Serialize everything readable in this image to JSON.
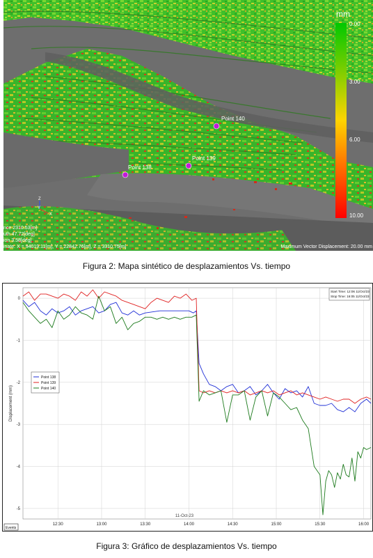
{
  "figure1": {
    "caption": "Figura 2: Mapa sintético de desplazamientos Vs. tiempo",
    "colorbar": {
      "unit": "mm",
      "ticks": [
        "0.00",
        "3.00",
        "6.00",
        "10.00"
      ],
      "colors": [
        "#00c800",
        "#ffd400",
        "#ff0000"
      ]
    },
    "points": [
      {
        "label": "Point 138"
      },
      {
        "label": "Point 139"
      },
      {
        "label": "Point 140"
      }
    ],
    "axis_labels": {
      "z": "Z",
      "y": "Y",
      "x": "X"
    },
    "info_lines": [
      "nce 2310.53[m]",
      "uth 47.72[deg]",
      "ion 3.58[deg]",
      "inate: X = 94019.11[m], Y = 22842.76[m], Z = 3310.75[m]"
    ],
    "max_vector": "Maximum Vector Displacement: 20.00 mm"
  },
  "figure2": {
    "caption": "Figura 3: Gráfico de desplazamientos Vs. tiempo",
    "start_time": "Start Time: 12:06 11/Oct/23",
    "stop_time": "Stop Time: 16:05 11/Oct/23",
    "date_label": "11-Oct-23",
    "events_label": "Events",
    "chart_data": {
      "type": "line",
      "ylabel": "Displacement (mm)",
      "xlabel": "",
      "xlim": [
        "12:06",
        "16:05"
      ],
      "ylim": [
        -5.25,
        0.25
      ],
      "x_ticks": [
        "12:30",
        "13:00",
        "13:30",
        "14:00",
        "14:30",
        "15:00",
        "15:30",
        "16:00"
      ],
      "y_ticks": [
        "0",
        "-1",
        "-2",
        "-3",
        "-4",
        "-5"
      ],
      "series": [
        {
          "name": "Point 138",
          "color": "#1f2fd6",
          "x": [
            "12:06",
            "12:10",
            "12:14",
            "12:18",
            "12:22",
            "12:26",
            "12:30",
            "12:34",
            "12:38",
            "12:42",
            "12:46",
            "12:50",
            "12:54",
            "12:58",
            "13:02",
            "13:06",
            "13:10",
            "13:14",
            "13:18",
            "13:22",
            "13:26",
            "13:30",
            "13:40",
            "13:50",
            "14:00",
            "14:03",
            "14:05",
            "14:07",
            "14:10",
            "14:14",
            "14:18",
            "14:22",
            "14:26",
            "14:30",
            "14:34",
            "14:38",
            "14:42",
            "14:46",
            "14:50",
            "14:54",
            "14:58",
            "15:02",
            "15:06",
            "15:10",
            "15:14",
            "15:18",
            "15:22",
            "15:26",
            "15:30",
            "15:34",
            "15:38",
            "15:42",
            "15:46",
            "15:50",
            "15:54",
            "15:58",
            "16:02",
            "16:05"
          ],
          "y": [
            -0.05,
            -0.2,
            -0.1,
            -0.3,
            -0.4,
            -0.25,
            -0.35,
            -0.3,
            -0.2,
            -0.4,
            -0.3,
            -0.25,
            -0.2,
            -0.35,
            -0.3,
            -0.15,
            -0.1,
            -0.35,
            -0.4,
            -0.3,
            -0.4,
            -0.35,
            -0.3,
            -0.3,
            -0.3,
            -0.35,
            -0.3,
            -1.55,
            -1.8,
            -2.05,
            -2.1,
            -2.2,
            -2.1,
            -2.05,
            -2.25,
            -2.2,
            -2.1,
            -2.3,
            -2.2,
            -2.05,
            -2.25,
            -2.4,
            -2.15,
            -2.25,
            -2.2,
            -2.35,
            -2.1,
            -2.5,
            -2.55,
            -2.55,
            -2.5,
            -2.65,
            -2.7,
            -2.6,
            -2.7,
            -2.5,
            -2.4,
            -2.5
          ]
        },
        {
          "name": "Point 139",
          "color": "#e02020",
          "x": [
            "12:06",
            "12:10",
            "12:14",
            "12:18",
            "12:22",
            "12:26",
            "12:30",
            "12:34",
            "12:38",
            "12:42",
            "12:46",
            "12:50",
            "12:54",
            "12:58",
            "13:02",
            "13:06",
            "13:10",
            "13:14",
            "13:18",
            "13:22",
            "13:26",
            "13:30",
            "13:34",
            "13:38",
            "13:42",
            "13:46",
            "13:50",
            "13:54",
            "13:58",
            "14:02",
            "14:05",
            "14:07",
            "14:10",
            "14:14",
            "14:18",
            "14:22",
            "14:26",
            "14:30",
            "14:34",
            "14:38",
            "14:42",
            "14:46",
            "14:50",
            "14:54",
            "14:58",
            "15:02",
            "15:06",
            "15:10",
            "15:14",
            "15:18",
            "15:22",
            "15:26",
            "15:30",
            "15:34",
            "15:38",
            "15:42",
            "15:46",
            "15:50",
            "15:54",
            "15:58",
            "16:02",
            "16:05"
          ],
          "y": [
            0.05,
            0.15,
            -0.05,
            0.1,
            0.1,
            0.05,
            0.0,
            0.1,
            0.05,
            -0.05,
            0.15,
            0.05,
            0.2,
            0.0,
            0.15,
            0.1,
            0.05,
            -0.05,
            -0.1,
            -0.15,
            -0.2,
            -0.25,
            -0.1,
            0.0,
            -0.05,
            -0.1,
            0.05,
            0.0,
            0.1,
            -0.05,
            0.0,
            -2.2,
            -2.25,
            -2.2,
            -2.25,
            -2.2,
            -2.25,
            -2.2,
            -2.25,
            -2.2,
            -2.3,
            -2.25,
            -2.2,
            -2.25,
            -2.2,
            -2.3,
            -2.25,
            -2.2,
            -2.3,
            -2.25,
            -2.3,
            -2.35,
            -2.4,
            -2.35,
            -2.4,
            -2.45,
            -2.4,
            -2.4,
            -2.5,
            -2.4,
            -2.35,
            -2.4
          ]
        },
        {
          "name": "Point 140",
          "color": "#1c7a1c",
          "x": [
            "12:06",
            "12:10",
            "12:14",
            "12:18",
            "12:22",
            "12:26",
            "12:30",
            "12:34",
            "12:38",
            "12:42",
            "12:46",
            "12:50",
            "12:54",
            "12:58",
            "13:02",
            "13:06",
            "13:10",
            "13:14",
            "13:18",
            "13:22",
            "13:26",
            "13:30",
            "13:34",
            "13:38",
            "13:42",
            "13:46",
            "13:50",
            "13:54",
            "13:58",
            "14:02",
            "14:05",
            "14:07",
            "14:10",
            "14:14",
            "14:18",
            "14:22",
            "14:26",
            "14:30",
            "14:34",
            "14:38",
            "14:42",
            "14:46",
            "14:50",
            "14:54",
            "14:58",
            "15:02",
            "15:06",
            "15:10",
            "15:14",
            "15:18",
            "15:22",
            "15:26",
            "15:30",
            "15:32",
            "15:34",
            "15:36",
            "15:38",
            "15:40",
            "15:42",
            "15:44",
            "15:46",
            "15:48",
            "15:50",
            "15:52",
            "15:54",
            "15:56",
            "15:58",
            "16:00",
            "16:02",
            "16:05"
          ],
          "y": [
            -0.1,
            -0.3,
            -0.45,
            -0.6,
            -0.5,
            -0.7,
            -0.3,
            -0.5,
            -0.4,
            -0.2,
            -0.35,
            -0.4,
            -0.5,
            0.05,
            -0.3,
            -0.2,
            -0.6,
            -0.45,
            -0.75,
            -0.6,
            -0.55,
            -0.45,
            -0.45,
            -0.5,
            -0.45,
            -0.5,
            -0.45,
            -0.5,
            -0.45,
            -0.45,
            -0.4,
            -2.45,
            -2.2,
            -2.3,
            -2.25,
            -2.2,
            -2.95,
            -2.3,
            -2.3,
            -2.2,
            -2.9,
            -2.35,
            -2.2,
            -2.8,
            -2.25,
            -2.35,
            -2.5,
            -2.65,
            -2.6,
            -2.9,
            -3.1,
            -4.0,
            -4.2,
            -5.15,
            -4.35,
            -4.1,
            -4.2,
            -4.5,
            -4.15,
            -4.3,
            -3.95,
            -4.2,
            -4.25,
            -3.8,
            -4.35,
            -3.65,
            -3.8,
            -3.55,
            -3.6,
            -3.55
          ]
        }
      ],
      "legend_position": "left"
    }
  }
}
